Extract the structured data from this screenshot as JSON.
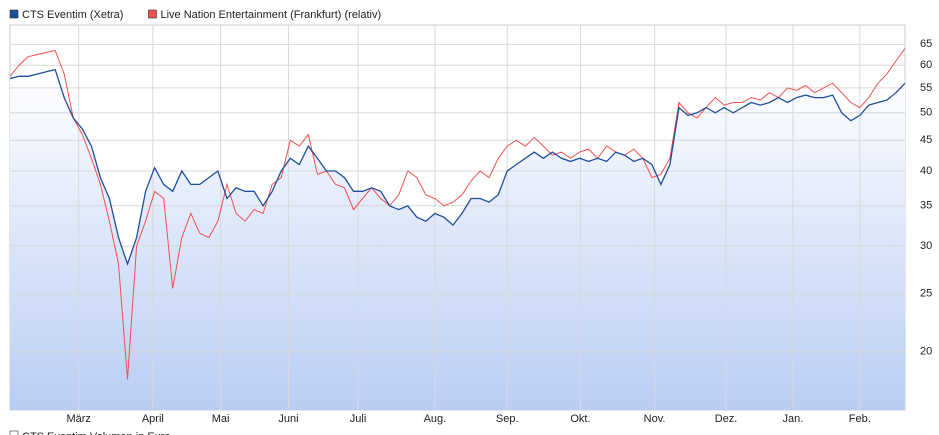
{
  "chart_data": {
    "type": "line",
    "log_scale": true,
    "grid": true,
    "legend_position": "top-left",
    "x": [
      0,
      1,
      2,
      3,
      4,
      5,
      6,
      7,
      8,
      9,
      10,
      11,
      12,
      13,
      14,
      15,
      16,
      17,
      18,
      19,
      20,
      21,
      22,
      23,
      24,
      25,
      26,
      27,
      28,
      29,
      30,
      31,
      32,
      33,
      34,
      35,
      36,
      37,
      38,
      39,
      40,
      41,
      42,
      43,
      44,
      45,
      46,
      47,
      48,
      49,
      50,
      51,
      52,
      53,
      54,
      55,
      56,
      57,
      58,
      59,
      60,
      61,
      62,
      63,
      64,
      65,
      66,
      67,
      68,
      69,
      70,
      71,
      72,
      73,
      74,
      75,
      76,
      77,
      78,
      79,
      80,
      81,
      82,
      83,
      84,
      85,
      86,
      87,
      88,
      89,
      90,
      91,
      92,
      93,
      94,
      95,
      96,
      97,
      98,
      99
    ],
    "xlim": [
      0,
      99
    ],
    "xticks": [
      {
        "value": 7.6,
        "label": "März"
      },
      {
        "value": 15.8,
        "label": "April"
      },
      {
        "value": 23.3,
        "label": "Mai"
      },
      {
        "value": 30.8,
        "label": "Juni"
      },
      {
        "value": 38.5,
        "label": "Juli"
      },
      {
        "value": 47.0,
        "label": "Aug."
      },
      {
        "value": 55.0,
        "label": "Sep."
      },
      {
        "value": 63.1,
        "label": "Okt."
      },
      {
        "value": 71.3,
        "label": "Nov."
      },
      {
        "value": 79.2,
        "label": "Dez."
      },
      {
        "value": 86.6,
        "label": "Jan."
      },
      {
        "value": 94.0,
        "label": "Feb."
      }
    ],
    "ylim": [
      16,
      70
    ],
    "yticks": [
      20,
      25,
      30,
      35,
      40,
      45,
      50,
      55,
      60,
      65
    ],
    "series": [
      {
        "name": "CTS Eventim (Xetra)",
        "color": "#1f4e9a",
        "values": [
          57,
          57.5,
          57.5,
          58,
          58.5,
          59,
          53,
          49,
          47,
          44,
          39,
          36,
          31,
          28,
          31,
          37,
          40.5,
          38,
          37,
          40,
          38,
          38,
          39,
          40,
          36,
          37.5,
          37,
          37,
          35,
          37,
          40,
          42,
          41,
          44,
          42,
          40,
          40,
          39,
          37,
          37,
          37.5,
          37,
          35,
          34.5,
          35,
          33.5,
          33,
          34,
          33.5,
          32.5,
          34,
          36,
          36,
          35.5,
          36.5,
          40,
          41,
          42,
          43,
          42,
          43,
          42,
          41.5,
          42,
          41.5,
          42,
          41.5,
          43,
          42.5,
          41.5,
          42,
          41,
          38,
          41,
          51,
          49.5,
          50,
          51,
          50,
          51,
          50,
          51,
          52,
          51.5,
          52,
          53,
          52,
          53,
          53.5,
          53,
          53,
          53.5,
          50,
          48.5,
          49.5,
          51.5,
          52,
          52.5,
          54,
          56
        ]
      },
      {
        "name": "Live Nation Entertainment (Frankfurt) (relativ)",
        "color": "#f05050",
        "values": [
          57.5,
          60,
          62,
          62.5,
          63,
          63.5,
          58,
          49,
          46,
          42,
          38,
          33,
          28,
          18,
          30,
          33,
          37,
          36,
          25.5,
          31,
          34,
          31.5,
          31,
          33,
          38,
          34,
          33,
          34.5,
          34,
          38,
          39,
          45,
          44,
          46,
          39.5,
          40,
          38,
          37.5,
          34.5,
          36,
          37.5,
          36,
          35,
          36.5,
          40,
          39,
          36.5,
          36,
          35,
          35.5,
          36.5,
          38.5,
          40,
          39,
          42,
          44,
          45,
          44,
          45.5,
          44,
          42.5,
          43,
          42,
          43,
          43.5,
          42,
          44,
          43,
          42.5,
          43.5,
          42,
          39,
          39.5,
          42,
          52,
          50,
          49,
          51,
          53,
          51.5,
          52,
          52,
          53,
          52.5,
          54,
          53,
          55,
          54.5,
          55.5,
          54,
          55,
          56,
          54,
          52,
          51,
          53,
          56,
          58,
          61,
          64
        ]
      }
    ],
    "footer_legend": "CTS Eventim Volumen in Euro"
  }
}
